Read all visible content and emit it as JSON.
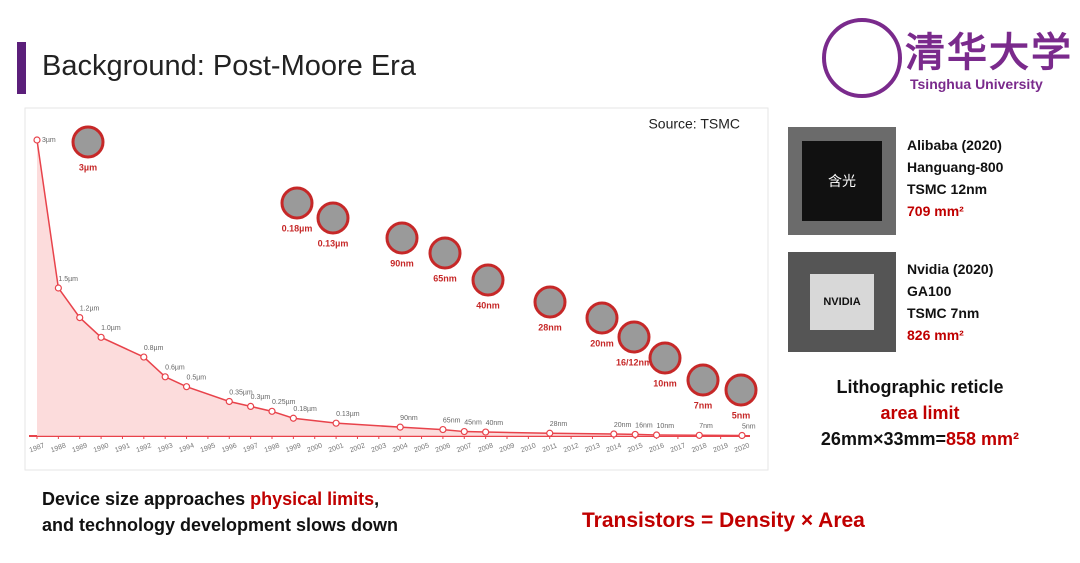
{
  "header": {
    "title": "Background: Post-Moore Era",
    "logo_cn": "清华大学",
    "logo_en": "Tsinghua University"
  },
  "chart_data": {
    "type": "line",
    "source": "Source: TSMC",
    "color": "#e8434b",
    "x": [
      1987,
      1988,
      1989,
      1990,
      1992,
      1993,
      1994,
      1996,
      1997,
      1998,
      1999,
      2001,
      2004,
      2006,
      2007,
      2008,
      2011,
      2014,
      2015,
      2016,
      2018,
      2020
    ],
    "values": [
      3,
      1.5,
      1.2,
      1.0,
      0.8,
      0.6,
      0.5,
      0.35,
      0.3,
      0.25,
      0.18,
      0.13,
      0.09,
      0.065,
      0.045,
      0.04,
      0.028,
      0.02,
      0.016,
      0.01,
      0.007,
      0.005
    ],
    "value_labels": [
      "3µm",
      "1.5µm",
      "1.2µm",
      "1.0µm",
      "0.8µm",
      "0.6µm",
      "0.5µm",
      "0.35µm",
      "0.3µm",
      "0.25µm",
      "0.18µm",
      "0.13µm",
      "90nm",
      "65nm",
      "45nm",
      "40nm",
      "28nm",
      "20nm",
      "16nm",
      "10nm",
      "7nm",
      "5nm"
    ],
    "xlim": [
      1987,
      2020
    ],
    "xticks": [
      1987,
      1988,
      1989,
      1990,
      1991,
      1992,
      1993,
      1994,
      1995,
      1996,
      1997,
      1998,
      1999,
      2000,
      2001,
      2002,
      2003,
      2004,
      2005,
      2006,
      2007,
      2008,
      2009,
      2010,
      2011,
      2012,
      2013,
      2014,
      2015,
      2016,
      2017,
      2018,
      2019,
      2020
    ],
    "callouts": [
      "3µm",
      "0.18µm",
      "0.13µm",
      "90nm",
      "65nm",
      "40nm",
      "28nm",
      "20nm",
      "16/12nm",
      "10nm",
      "7nm",
      "5nm"
    ]
  },
  "chips": [
    {
      "chip_label": "含光",
      "lines": [
        "Alibaba (2020)",
        "Hanguang-800",
        "TSMC 12nm"
      ],
      "area": "709 mm²"
    },
    {
      "chip_label": "NVIDIA",
      "lines": [
        "Nvidia (2020)",
        "GA100",
        "TSMC 7nm"
      ],
      "area": "826 mm²"
    }
  ],
  "reticle": {
    "line1": "Lithographic reticle",
    "line2": "area limit",
    "formula": "26mm×33mm=",
    "area": "858 mm²"
  },
  "conclusion": {
    "part1": "Device size approaches ",
    "highlight": "physical limits",
    "part2": ",",
    "line2": "and technology development slows down"
  },
  "formula": "Transistors = Density × Area"
}
